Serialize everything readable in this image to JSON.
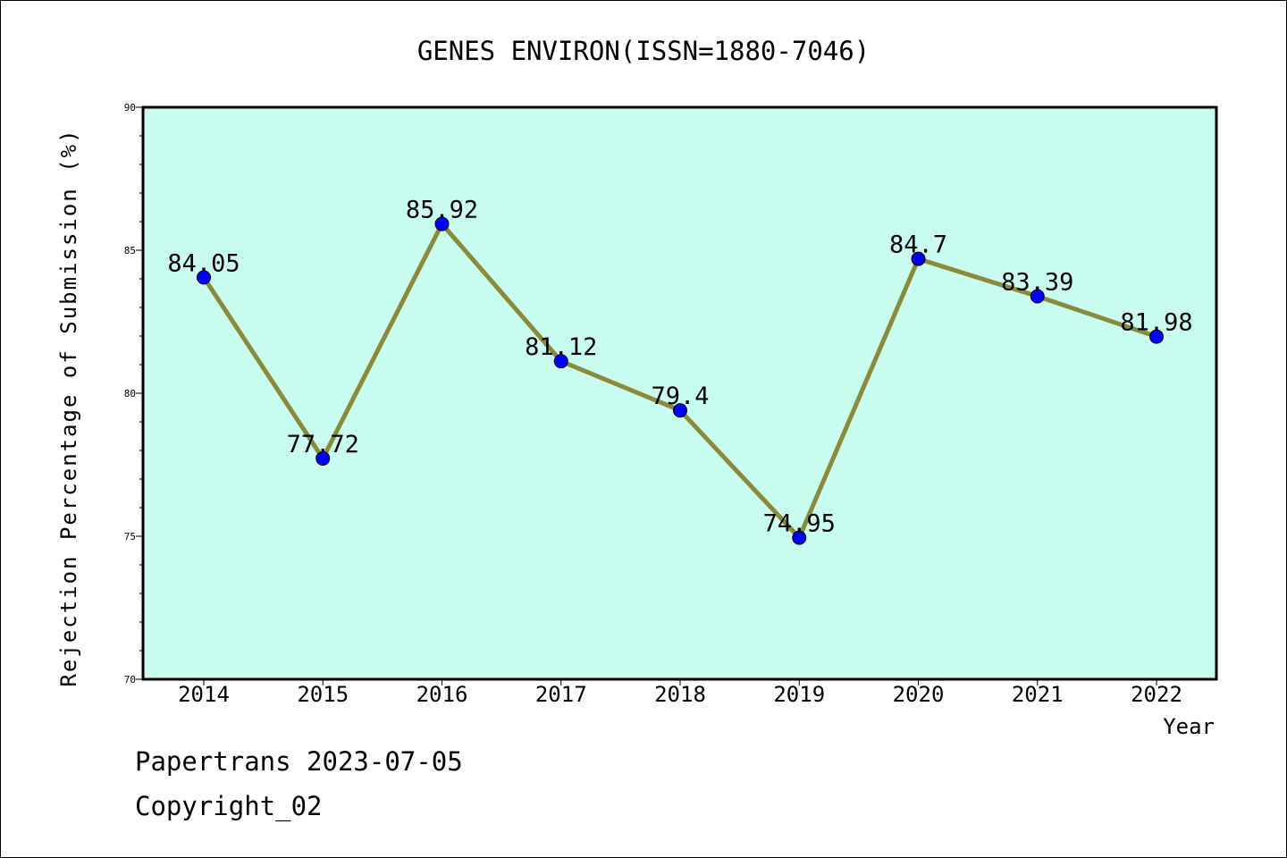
{
  "chart_data": {
    "type": "line",
    "title": "GENES ENVIRON(ISSN=1880-7046)",
    "xlabel": "Year",
    "ylabel": "Rejection Percentage of Submission (%)",
    "categories": [
      "2014",
      "2015",
      "2016",
      "2017",
      "2018",
      "2019",
      "2020",
      "2021",
      "2022"
    ],
    "values": [
      84.05,
      77.72,
      85.92,
      81.12,
      79.4,
      74.95,
      84.7,
      83.39,
      81.98
    ],
    "data_labels": [
      "84.05",
      "77.72",
      "85.92",
      "81.12",
      "79.4",
      "74.95",
      "84.7",
      "83.39",
      "81.98"
    ],
    "ylim": [
      70,
      90
    ],
    "yticks": [
      "70",
      "75",
      "80",
      "85",
      "90"
    ],
    "grid": false,
    "colors": {
      "plot_background": "#c8fcef",
      "line": "#8b8a3b",
      "marker": "#0000ff"
    }
  },
  "footer": {
    "line1": "Papertrans 2023-07-05",
    "line2": "Copyright_02"
  }
}
